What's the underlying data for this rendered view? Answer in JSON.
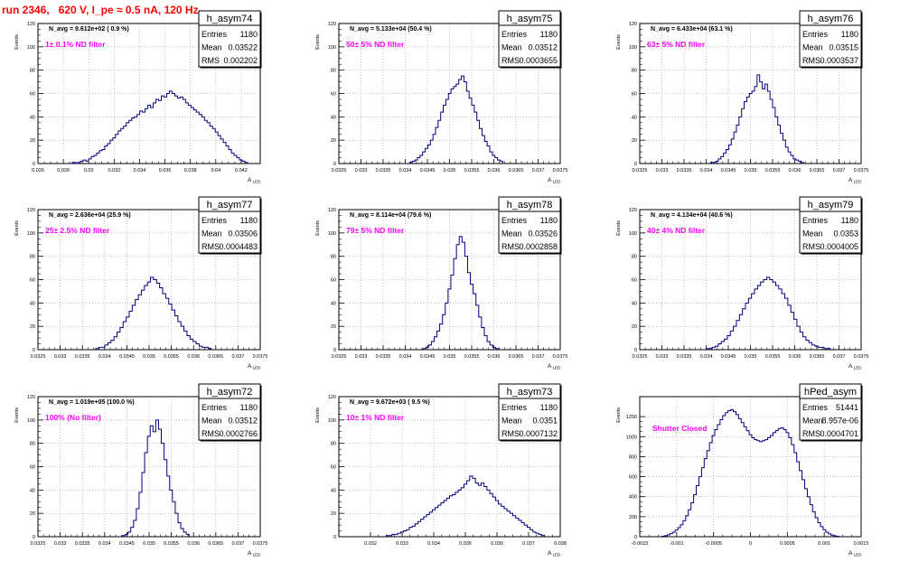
{
  "canvas": {
    "title": "run 2346,   620 V, I_pe ≈ 0.5 nA, 120 Hz",
    "colors": {
      "title": "#ff0000",
      "annotation": "#ff00ff",
      "histogram": "#000080",
      "grid": "#9a9a9a"
    }
  },
  "chart_data": [
    {
      "type": "histogram",
      "name": "h_asym74",
      "stats": {
        "entries_label": "Entries",
        "entries": "1180",
        "mean_label": "Mean",
        "mean": "0.03522",
        "rms_label": "RMS",
        "rms": "0.002202"
      },
      "navg_text": "N_avg = 9.612e+02 ( 0.9 %)",
      "annotation": "1± 0.1% ND filter",
      "ylabel": "Events",
      "xlabel": "A",
      "xlim": [
        0.026,
        0.0435
      ],
      "ylim": [
        0,
        120
      ],
      "xticks": [
        0.026,
        0.028,
        0.03,
        0.032,
        0.034,
        0.036,
        0.038,
        0.04,
        0.042
      ],
      "xtick_labels": [
        "0.026",
        "0.028",
        "0.03",
        "0.032",
        "0.034",
        "0.036",
        "0.038",
        "0.04",
        "0.042"
      ],
      "yticks": [
        0,
        20,
        40,
        60,
        80,
        100,
        120
      ],
      "ytick_labels": [
        "0",
        "20",
        "40",
        "60",
        "80",
        "100",
        "120"
      ],
      "bin_range": [
        0.0285,
        0.0425
      ],
      "counts": [
        0,
        1,
        0,
        1,
        2,
        3,
        2,
        4,
        6,
        7,
        9,
        11,
        12,
        15,
        17,
        20,
        22,
        25,
        28,
        30,
        32,
        35,
        37,
        39,
        40,
        42,
        45,
        44,
        47,
        50,
        48,
        52,
        55,
        54,
        58,
        57,
        60,
        62,
        60,
        58,
        56,
        57,
        55,
        52,
        50,
        48,
        46,
        44,
        42,
        40,
        37,
        35,
        32,
        30,
        27,
        24,
        21,
        18,
        15,
        12,
        9,
        7,
        5,
        3,
        2,
        1
      ]
    },
    {
      "type": "histogram",
      "name": "h_asym75",
      "stats": {
        "entries_label": "Entries",
        "entries": "1180",
        "mean_label": "Mean",
        "mean": "0.03512",
        "rms_label": "RMS",
        "rms": "0.0003655"
      },
      "navg_text": "N_avg = 5.133e+04 (50.4 %)",
      "annotation": "50± 5% ND filter",
      "ylabel": "Events",
      "xlabel": "A",
      "xlim": [
        0.0325,
        0.0375
      ],
      "ylim": [
        0,
        120
      ],
      "xticks": [
        0.0325,
        0.033,
        0.0335,
        0.034,
        0.0345,
        0.035,
        0.0355,
        0.036,
        0.0365,
        0.037,
        0.0375
      ],
      "xtick_labels": [
        "0.0325",
        "0.033",
        "0.0335",
        "0.034",
        "0.0345",
        "0.035",
        "0.0355",
        "0.036",
        "0.0365",
        "0.037",
        "0.0375"
      ],
      "yticks": [
        0,
        20,
        40,
        60,
        80,
        100,
        120
      ],
      "ytick_labels": [
        "0",
        "20",
        "40",
        "60",
        "80",
        "100",
        "120"
      ],
      "bin_range": [
        0.0341,
        0.0362
      ],
      "counts": [
        1,
        2,
        3,
        5,
        7,
        10,
        13,
        16,
        20,
        25,
        31,
        37,
        44,
        50,
        55,
        60,
        64,
        66,
        68,
        72,
        75,
        70,
        62,
        56,
        50,
        44,
        37,
        30,
        24,
        19,
        15,
        10,
        7,
        5,
        3,
        2
      ]
    },
    {
      "type": "histogram",
      "name": "h_asym76",
      "stats": {
        "entries_label": "Entries",
        "entries": "1180",
        "mean_label": "Mean",
        "mean": "0.03515",
        "rms_label": "RMS",
        "rms": "0.0003537"
      },
      "navg_text": "N_avg = 6.433e+04 (63.1 %)",
      "annotation": "63± 5% ND filter",
      "ylabel": "Events",
      "xlabel": "A",
      "xlim": [
        0.0325,
        0.0375
      ],
      "ylim": [
        0,
        120
      ],
      "xticks": [
        0.0325,
        0.033,
        0.0335,
        0.034,
        0.0345,
        0.035,
        0.0355,
        0.036,
        0.0365,
        0.037,
        0.0375
      ],
      "xtick_labels": [
        "0.0325",
        "0.033",
        "0.0335",
        "0.034",
        "0.0345",
        "0.035",
        "0.0355",
        "0.036",
        "0.0365",
        "0.037",
        "0.0375"
      ],
      "yticks": [
        0,
        20,
        40,
        60,
        80,
        100,
        120
      ],
      "ytick_labels": [
        "0",
        "20",
        "40",
        "60",
        "80",
        "100",
        "120"
      ],
      "bin_range": [
        0.0341,
        0.0362
      ],
      "counts": [
        1,
        1,
        2,
        4,
        6,
        9,
        12,
        16,
        21,
        27,
        33,
        40,
        47,
        53,
        57,
        60,
        62,
        66,
        76,
        70,
        64,
        68,
        62,
        55,
        48,
        40,
        33,
        26,
        20,
        14,
        10,
        7,
        4,
        3,
        2,
        1
      ]
    },
    {
      "type": "histogram",
      "name": "h_asym77",
      "stats": {
        "entries_label": "Entries",
        "entries": "1180",
        "mean_label": "Mean",
        "mean": "0.03506",
        "rms_label": "RMS",
        "rms": "0.0004483"
      },
      "navg_text": "N_avg = 2.636e+04 (25.9 %)",
      "annotation": "25± 2.5% ND filter",
      "ylabel": "Events",
      "xlabel": "A",
      "xlim": [
        0.0325,
        0.0375
      ],
      "ylim": [
        0,
        120
      ],
      "xticks": [
        0.0325,
        0.033,
        0.0335,
        0.034,
        0.0345,
        0.035,
        0.0355,
        0.036,
        0.0365,
        0.037,
        0.0375
      ],
      "xtick_labels": [
        "0.0325",
        "0.033",
        "0.0335",
        "0.034",
        "0.0345",
        "0.035",
        "0.0355",
        "0.036",
        "0.0365",
        "0.037",
        "0.0375"
      ],
      "yticks": [
        0,
        20,
        40,
        60,
        80,
        100,
        120
      ],
      "ytick_labels": [
        "0",
        "20",
        "40",
        "60",
        "80",
        "100",
        "120"
      ],
      "bin_range": [
        0.0338,
        0.0364
      ],
      "counts": [
        1,
        2,
        2,
        4,
        6,
        8,
        11,
        15,
        19,
        24,
        28,
        33,
        38,
        43,
        47,
        51,
        55,
        58,
        62,
        60,
        57,
        53,
        48,
        44,
        39,
        34,
        29,
        24,
        20,
        16,
        12,
        9,
        7,
        5,
        3,
        2,
        2,
        1
      ]
    },
    {
      "type": "histogram",
      "name": "h_asym78",
      "stats": {
        "entries_label": "Entries",
        "entries": "1180",
        "mean_label": "Mean",
        "mean": "0.03526",
        "rms_label": "RMS",
        "rms": "0.0002858"
      },
      "navg_text": "N_avg = 8.114e+04 (79.6 %)",
      "annotation": "79± 5% ND filter",
      "ylabel": "Events",
      "xlabel": "A",
      "xlim": [
        0.0325,
        0.0375
      ],
      "ylim": [
        0,
        120
      ],
      "xticks": [
        0.0325,
        0.033,
        0.0335,
        0.034,
        0.0345,
        0.035,
        0.0355,
        0.036,
        0.0365,
        0.037,
        0.0375
      ],
      "xtick_labels": [
        "0.0325",
        "0.033",
        "0.0335",
        "0.034",
        "0.0345",
        "0.035",
        "0.0355",
        "0.036",
        "0.0365",
        "0.037",
        "0.0375"
      ],
      "yticks": [
        0,
        20,
        40,
        60,
        80,
        100,
        120
      ],
      "ytick_labels": [
        "0",
        "20",
        "40",
        "60",
        "80",
        "100",
        "120"
      ],
      "bin_range": [
        0.0344,
        0.0361
      ],
      "counts": [
        1,
        2,
        4,
        7,
        11,
        16,
        22,
        30,
        40,
        52,
        64,
        78,
        90,
        97,
        92,
        80,
        66,
        56,
        48,
        38,
        28,
        19,
        12,
        7,
        4,
        2,
        1
      ]
    },
    {
      "type": "histogram",
      "name": "h_asym79",
      "stats": {
        "entries_label": "Entries",
        "entries": "1180",
        "mean_label": "Mean",
        "mean": "0.0353",
        "rms_label": "RMS",
        "rms": "0.0004005"
      },
      "navg_text": "N_avg = 4.134e+04 (40.6 %)",
      "annotation": "40± 4% ND filter",
      "ylabel": "Events",
      "xlabel": "A",
      "xlim": [
        0.0325,
        0.0375
      ],
      "ylim": [
        0,
        120
      ],
      "xticks": [
        0.0325,
        0.033,
        0.0335,
        0.034,
        0.0345,
        0.035,
        0.0355,
        0.036,
        0.0365,
        0.037,
        0.0375
      ],
      "xtick_labels": [
        "0.0325",
        "0.033",
        "0.0335",
        "0.034",
        "0.0345",
        "0.035",
        "0.0355",
        "0.036",
        "0.0365",
        "0.037",
        "0.0375"
      ],
      "yticks": [
        0,
        20,
        40,
        60,
        80,
        100,
        120
      ],
      "ytick_labels": [
        "0",
        "20",
        "40",
        "60",
        "80",
        "100",
        "120"
      ],
      "bin_range": [
        0.034,
        0.0368
      ],
      "counts": [
        1,
        1,
        2,
        3,
        5,
        7,
        9,
        12,
        16,
        20,
        25,
        30,
        35,
        40,
        44,
        48,
        52,
        55,
        58,
        60,
        62,
        60,
        58,
        55,
        52,
        48,
        44,
        38,
        32,
        26,
        20,
        15,
        11,
        8,
        6,
        4,
        3,
        2,
        2,
        1,
        1
      ]
    },
    {
      "type": "histogram",
      "name": "h_asym72",
      "stats": {
        "entries_label": "Entries",
        "entries": "1180",
        "mean_label": "Mean",
        "mean": "0.03512",
        "rms_label": "RMS",
        "rms": "0.0002766"
      },
      "navg_text": "N_avg = 1.019e+05 (100.0 %)",
      "annotation": "100% (No filter)",
      "ylabel": "Events",
      "xlabel": "A",
      "xlim": [
        0.0325,
        0.0375
      ],
      "ylim": [
        0,
        120
      ],
      "xticks": [
        0.0325,
        0.033,
        0.0335,
        0.034,
        0.0345,
        0.035,
        0.0355,
        0.036,
        0.0365,
        0.037,
        0.0375
      ],
      "xtick_labels": [
        "0.0325",
        "0.033",
        "0.0335",
        "0.034",
        "0.0345",
        "0.035",
        "0.0355",
        "0.036",
        "0.0365",
        "0.037",
        "0.0375"
      ],
      "yticks": [
        0,
        20,
        40,
        60,
        80,
        100,
        120
      ],
      "ytick_labels": [
        "0",
        "20",
        "40",
        "60",
        "80",
        "100",
        "120"
      ],
      "bin_range": [
        0.0344,
        0.0359
      ],
      "counts": [
        1,
        2,
        4,
        8,
        14,
        24,
        38,
        55,
        72,
        86,
        95,
        90,
        100,
        92,
        80,
        66,
        52,
        40,
        30,
        20,
        12,
        7,
        4,
        2
      ]
    },
    {
      "type": "histogram",
      "name": "h_asym73",
      "stats": {
        "entries_label": "Entries",
        "entries": "1180",
        "mean_label": "Mean",
        "mean": "0.0351",
        "rms_label": "RMS",
        "rms": "0.0007132"
      },
      "navg_text": "N_avg = 9.672e+03 ( 9.5 %)",
      "annotation": "10± 1% ND filter",
      "ylabel": "Events",
      "xlabel": "A",
      "xlim": [
        0.031,
        0.038
      ],
      "ylim": [
        0,
        120
      ],
      "xticks": [
        0.032,
        0.033,
        0.034,
        0.035,
        0.036,
        0.037,
        0.038
      ],
      "xtick_labels": [
        "0.032",
        "0.033",
        "0.034",
        "0.035",
        "0.036",
        "0.037",
        "0.038"
      ],
      "yticks": [
        0,
        20,
        40,
        60,
        80,
        100,
        120
      ],
      "ytick_labels": [
        "0",
        "20",
        "40",
        "60",
        "80",
        "100",
        "120"
      ],
      "bin_range": [
        0.0325,
        0.0375
      ],
      "counts": [
        1,
        1,
        2,
        2,
        3,
        4,
        5,
        6,
        8,
        9,
        11,
        13,
        15,
        17,
        19,
        21,
        23,
        25,
        27,
        29,
        31,
        33,
        35,
        36,
        38,
        40,
        42,
        45,
        48,
        52,
        50,
        46,
        44,
        46,
        43,
        40,
        37,
        34,
        31,
        28,
        26,
        24,
        22,
        20,
        18,
        16,
        14,
        12,
        10,
        8,
        6,
        4,
        3,
        2,
        1
      ]
    },
    {
      "type": "histogram",
      "name": "hPed_asym",
      "stats": {
        "entries_label": "Entries",
        "entries": "51441",
        "mean_label": "Mean",
        "mean": "8.957e-06",
        "rms_label": "RMS",
        "rms": "0.0004701"
      },
      "navg_text": "",
      "annotation": "Shutter Closed",
      "ylabel": "Events",
      "xlabel": "A",
      "xlim": [
        -0.0015,
        0.0015
      ],
      "ylim": [
        0,
        1400
      ],
      "xticks": [
        -0.0015,
        -0.001,
        -0.0005,
        0,
        0.0005,
        0.001,
        0.0015
      ],
      "xtick_labels": [
        "-0.0015",
        "-0.001",
        "-0.0005",
        "0",
        "0.0005",
        "0.001",
        "0.0015"
      ],
      "yticks": [
        0,
        200,
        400,
        600,
        800,
        1000,
        1200
      ],
      "ytick_labels": [
        "0",
        "200",
        "400",
        "600",
        "800",
        "1000",
        "1200"
      ],
      "bin_range": [
        -0.0012,
        0.0012
      ],
      "counts": [
        5,
        10,
        18,
        30,
        45,
        65,
        90,
        120,
        160,
        210,
        270,
        340,
        420,
        510,
        600,
        690,
        780,
        860,
        940,
        1010,
        1070,
        1120,
        1170,
        1210,
        1240,
        1260,
        1270,
        1250,
        1220,
        1180,
        1140,
        1100,
        1060,
        1020,
        990,
        970,
        960,
        950,
        960,
        970,
        990,
        1010,
        1040,
        1060,
        1080,
        1090,
        1070,
        1040,
        990,
        920,
        840,
        750,
        660,
        570,
        480,
        400,
        320,
        250,
        190,
        140,
        100,
        70,
        45,
        28,
        16,
        9,
        5
      ]
    }
  ]
}
